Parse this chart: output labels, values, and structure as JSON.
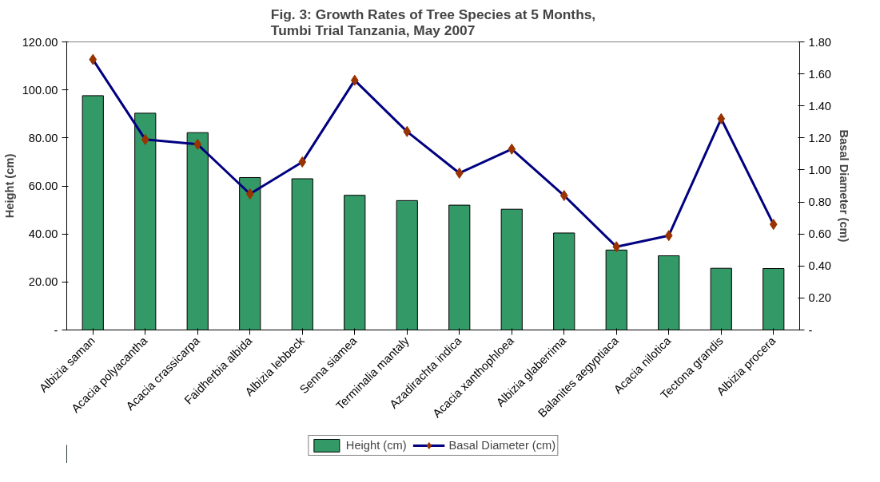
{
  "chart_data": {
    "type": "bar",
    "title": "Fig. 3: Growth Rates of Tree Species at 5 Months,\nTumbi Trial Tanzania, May 2007",
    "ylabel": "Height (cm)",
    "y2label": "Basal Diameter (cm)",
    "categories": [
      "Albizia saman",
      "Acacia polyacantha",
      "Acacia crassicarpa",
      "Faidherbia albida",
      "Albizia lebbeck",
      "Senna siamea",
      "Terminalia mantaly",
      "Azadirachta indica",
      "Acacia xanthophloea",
      "Albizia glaberrima",
      "Balanites aegyptiaca",
      "Acacia nilotica",
      "Tectona grandis",
      "Albizia procera"
    ],
    "series": [
      {
        "name": "Height (cm)",
        "color": "#339966",
        "values": [
          97.6,
          90.3,
          82.2,
          63.5,
          63.0,
          56.1,
          53.9,
          52.0,
          50.3,
          40.4,
          33.3,
          30.9,
          25.7,
          25.6
        ]
      },
      {
        "name": "Basal Diameter (cm)",
        "type": "line",
        "axis": "y2",
        "color": "#000080",
        "marker": "diamond",
        "values": [
          1.69,
          1.19,
          1.16,
          0.85,
          1.05,
          1.56,
          1.24,
          0.98,
          1.13,
          0.84,
          0.52,
          0.59,
          1.32,
          0.66
        ]
      }
    ],
    "ylim": [
      0,
      120
    ],
    "yticks": [
      {
        "value": 0,
        "label": "-"
      },
      {
        "value": 20,
        "label": "20.00"
      },
      {
        "value": 40,
        "label": "40.00"
      },
      {
        "value": 60,
        "label": "60.00"
      },
      {
        "value": 80,
        "label": "80.00"
      },
      {
        "value": 100,
        "label": "100.00"
      },
      {
        "value": 120,
        "label": "120.00"
      }
    ],
    "y2lim": [
      0,
      1.8
    ],
    "y2ticks": [
      {
        "value": 0,
        "label": "-"
      },
      {
        "value": 0.2,
        "label": "0.20"
      },
      {
        "value": 0.4,
        "label": "0.40"
      },
      {
        "value": 0.6,
        "label": "0.60"
      },
      {
        "value": 0.8,
        "label": "0.80"
      },
      {
        "value": 1.0,
        "label": "1.00"
      },
      {
        "value": 1.2,
        "label": "1.20"
      },
      {
        "value": 1.4,
        "label": "1.40"
      },
      {
        "value": 1.6,
        "label": "1.60"
      },
      {
        "value": 1.8,
        "label": "1.80"
      }
    ],
    "grid": false,
    "legend": "bottom"
  }
}
